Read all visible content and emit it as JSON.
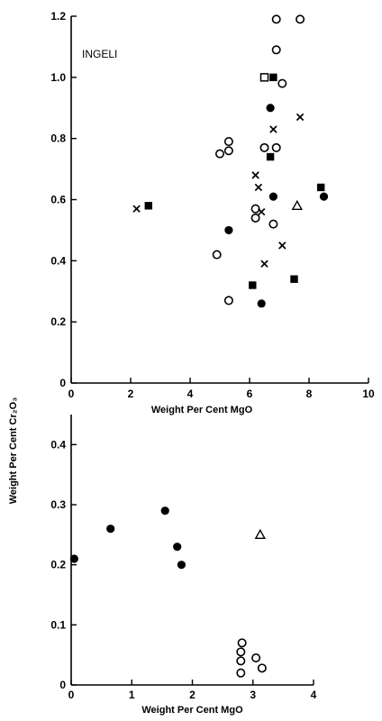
{
  "shared_ylabel": "Weight Per Cent Cr₂O₃",
  "chart_data": [
    {
      "type": "scatter",
      "annotation": "INGELI",
      "xlabel": "Weight Per Cent MgO",
      "ylabel": "Weight Per Cent Cr₂O₃",
      "xlim": [
        0,
        10
      ],
      "ylim": [
        0,
        1.2
      ],
      "xticks": [
        "0",
        "2",
        "4",
        "6",
        "8",
        "10"
      ],
      "yticks": [
        "0",
        "0.2",
        "0.4",
        "0.6",
        "0.8",
        "1.0",
        "1.2"
      ],
      "grid": false,
      "series": [
        {
          "marker": "open-circle",
          "points": [
            [
              6.9,
              1.19
            ],
            [
              7.7,
              1.19
            ],
            [
              6.9,
              1.09
            ],
            [
              7.1,
              0.98
            ],
            [
              5.3,
              0.79
            ],
            [
              5.0,
              0.75
            ],
            [
              5.3,
              0.76
            ],
            [
              6.5,
              0.77
            ],
            [
              6.9,
              0.77
            ],
            [
              6.2,
              0.57
            ],
            [
              6.2,
              0.54
            ],
            [
              6.8,
              0.52
            ],
            [
              4.9,
              0.42
            ],
            [
              5.3,
              0.27
            ]
          ]
        },
        {
          "marker": "filled-circle",
          "points": [
            [
              6.7,
              0.9
            ],
            [
              6.8,
              0.61
            ],
            [
              5.3,
              0.5
            ],
            [
              6.4,
              0.26
            ],
            [
              8.5,
              0.61
            ]
          ]
        },
        {
          "marker": "open-square",
          "points": [
            [
              6.5,
              1.0
            ]
          ]
        },
        {
          "marker": "filled-square",
          "points": [
            [
              6.8,
              1.0
            ],
            [
              6.7,
              0.74
            ],
            [
              2.6,
              0.58
            ],
            [
              8.4,
              0.64
            ],
            [
              6.1,
              0.32
            ],
            [
              7.5,
              0.34
            ]
          ]
        },
        {
          "marker": "cross",
          "points": [
            [
              6.8,
              0.83
            ],
            [
              7.7,
              0.87
            ],
            [
              6.2,
              0.68
            ],
            [
              6.3,
              0.64
            ],
            [
              6.4,
              0.56
            ],
            [
              2.2,
              0.57
            ],
            [
              7.1,
              0.45
            ],
            [
              6.5,
              0.39
            ]
          ]
        },
        {
          "marker": "open-triangle",
          "points": [
            [
              7.6,
              0.58
            ]
          ]
        }
      ]
    },
    {
      "type": "scatter",
      "xlabel": "Weight Per Cent MgO",
      "ylabel": "Weight Per Cent Cr₂O₃",
      "xlim": [
        0,
        4
      ],
      "ylim": [
        0,
        0.45
      ],
      "xticks": [
        "0",
        "1",
        "2",
        "3",
        "4"
      ],
      "yticks": [
        "0",
        "0.1",
        "0.2",
        "0.3",
        "0.4"
      ],
      "grid": false,
      "series": [
        {
          "marker": "filled-circle",
          "points": [
            [
              0.05,
              0.21
            ],
            [
              0.65,
              0.26
            ],
            [
              1.55,
              0.29
            ],
            [
              1.75,
              0.23
            ],
            [
              1.82,
              0.2
            ]
          ]
        },
        {
          "marker": "open-triangle",
          "points": [
            [
              3.12,
              0.25
            ]
          ]
        },
        {
          "marker": "open-circle",
          "points": [
            [
              2.82,
              0.07
            ],
            [
              2.8,
              0.055
            ],
            [
              2.8,
              0.04
            ],
            [
              2.8,
              0.02
            ],
            [
              3.05,
              0.045
            ],
            [
              3.15,
              0.028
            ]
          ]
        }
      ]
    }
  ]
}
